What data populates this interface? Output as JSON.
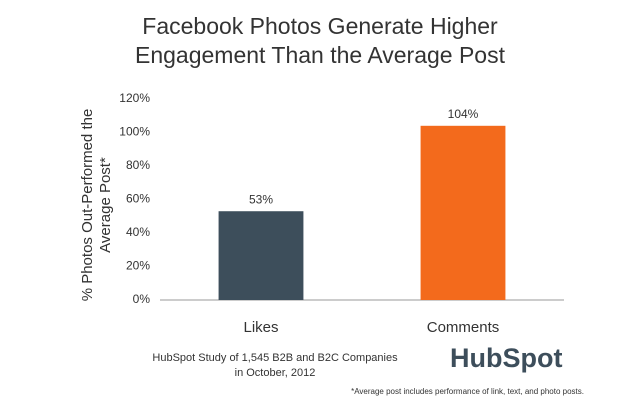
{
  "chart_data": {
    "type": "bar",
    "title": [
      "Facebook Photos Generate Higher",
      "Engagement Than the Average Post"
    ],
    "y_label": [
      "% Photos Out-Performed the",
      "Average Post*"
    ],
    "categories": [
      "Likes",
      "Comments"
    ],
    "values": [
      53,
      104
    ],
    "value_labels": [
      "53%",
      "104%"
    ],
    "colors": [
      "#3d4e5b",
      "#f36a1c"
    ],
    "ylim": [
      0,
      120
    ],
    "yticks": [
      {
        "value": 0,
        "label": "0%"
      },
      {
        "value": 20,
        "label": "20%"
      },
      {
        "value": 40,
        "label": "40%"
      },
      {
        "value": 60,
        "label": "60%"
      },
      {
        "value": 80,
        "label": "80%"
      },
      {
        "value": 100,
        "label": "100%"
      },
      {
        "value": 120,
        "label": "120%"
      }
    ],
    "grid": false,
    "source": [
      "HubSpot Study of 1,545 B2B and B2C Companies",
      "in October, 2012"
    ],
    "logo": "HubSpot",
    "footnote": "*Average post includes performance of link, text, and photo posts."
  }
}
